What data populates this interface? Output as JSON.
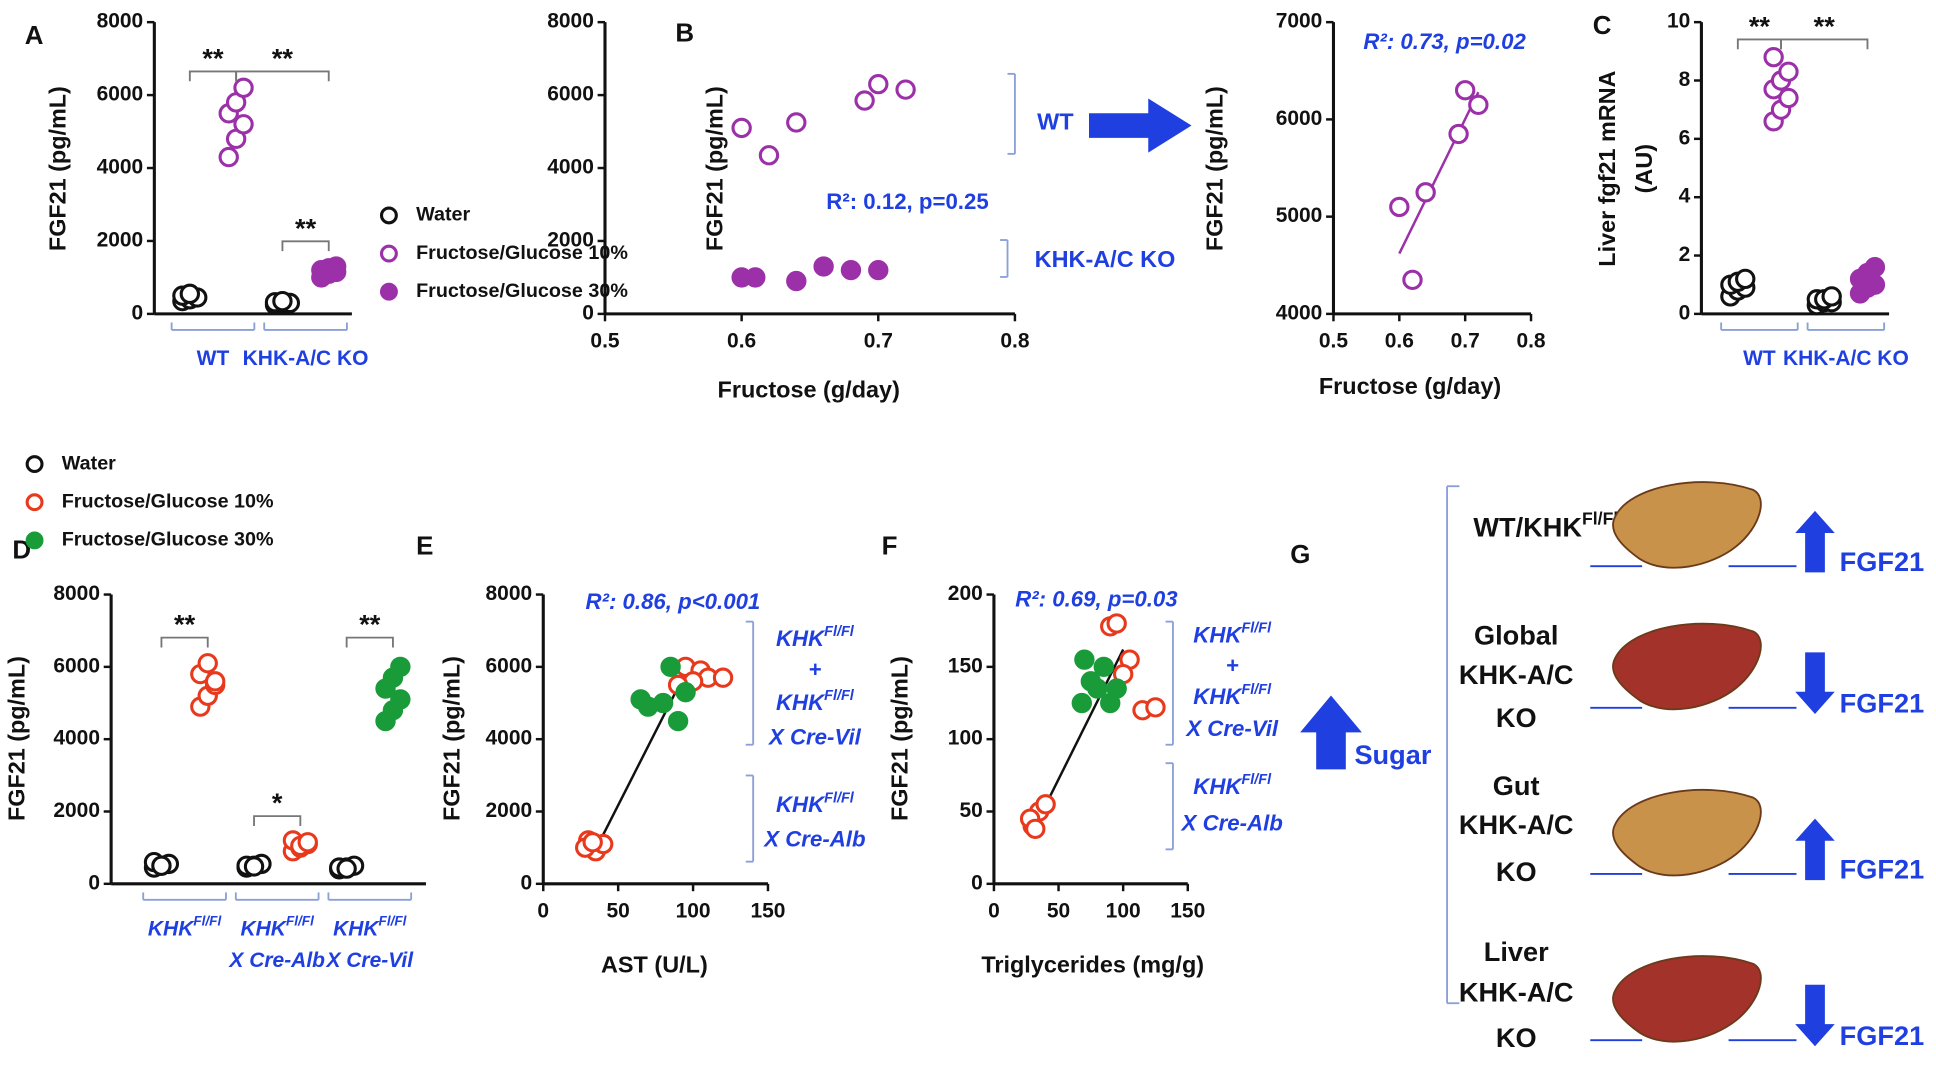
{
  "chart_data": [
    {
      "panel": "A",
      "type": "strip",
      "ylabel": "FGF21 (pg/mL)",
      "ylim": [
        0,
        8000
      ],
      "yticks": [
        0,
        2000,
        4000,
        6000,
        8000
      ],
      "categories": [
        "WT",
        "KHK-A/C KO"
      ],
      "series": [
        {
          "name": "Water",
          "color": "#111111",
          "filled": false,
          "values": [
            [
              350,
              400,
              450,
              500,
              550
            ],
            [
              250,
              280,
              300,
              320,
              350
            ]
          ]
        },
        {
          "name": "Fructose/Glucose 10%",
          "color": "#9b30a8",
          "filled": false,
          "values": [
            [
              4300,
              4800,
              5200,
              5500,
              5800,
              6200
            ],
            null
          ]
        },
        {
          "name": "Fructose/Glucose 30%",
          "color": "#9b30a8",
          "filled": true,
          "values": [
            null,
            [
              1000,
              1100,
              1150,
              1200,
              1250,
              1300
            ]
          ]
        }
      ],
      "annotations": [
        "**",
        "**",
        "**"
      ],
      "legend": "right"
    },
    {
      "panel": "B",
      "type": "scatter",
      "xlabel": "Fructose (g/day)",
      "ylabel": "FGF21 (pg/mL)",
      "xlim": [
        0.5,
        0.8
      ],
      "xticks": [
        0.5,
        0.6,
        0.7,
        0.8
      ],
      "ylim": [
        0,
        8000
      ],
      "yticks": [
        0,
        2000,
        4000,
        6000,
        8000
      ],
      "series": [
        {
          "name": "WT",
          "color": "#9b30a8",
          "filled": false,
          "x": [
            0.6,
            0.62,
            0.64,
            0.69,
            0.7,
            0.72
          ],
          "y": [
            5100,
            4350,
            5250,
            5850,
            6300,
            6150
          ]
        },
        {
          "name": "KHK-A/C KO",
          "color": "#9b30a8",
          "filled": true,
          "x": [
            0.6,
            0.61,
            0.64,
            0.66,
            0.68,
            0.7
          ],
          "y": [
            1000,
            1000,
            900,
            1300,
            1200,
            1200
          ]
        }
      ],
      "annotations": [
        "R²: 0.12, p=0.25"
      ]
    },
    {
      "type": "scatter",
      "xlabel": "Fructose (g/day)",
      "ylabel": "FGF21 (pg/mL)",
      "xlim": [
        0.5,
        0.8
      ],
      "xticks": [
        0.5,
        0.6,
        0.7,
        0.8
      ],
      "ylim": [
        4000,
        7000
      ],
      "yticks": [
        4000,
        5000,
        6000,
        7000
      ],
      "series": [
        {
          "color": "#9b30a8",
          "filled": false,
          "x": [
            0.6,
            0.62,
            0.64,
            0.69,
            0.7,
            0.72
          ],
          "y": [
            5100,
            4350,
            5250,
            5850,
            6300,
            6150
          ]
        }
      ],
      "fit": {
        "x": [
          0.6,
          0.72
        ],
        "y": [
          4620,
          6280
        ],
        "color": "#9b30a8"
      },
      "annotations": [
        "R²: 0.73, p=0.02"
      ]
    },
    {
      "panel": "C",
      "type": "strip",
      "ylabel": [
        "Liver fgf21 mRNA",
        "(AU)"
      ],
      "ylim": [
        0,
        10
      ],
      "yticks": [
        0,
        2,
        4,
        6,
        8,
        10
      ],
      "categories": [
        "WT",
        "KHK-A/C KO"
      ],
      "series": [
        {
          "color": "#111111",
          "filled": false,
          "values": [
            [
              0.6,
              0.8,
              0.9,
              1.0,
              1.1,
              1.2
            ],
            [
              0.3,
              0.4,
              0.4,
              0.5,
              0.5,
              0.6
            ]
          ]
        },
        {
          "color": "#9b30a8",
          "filled": false,
          "values": [
            [
              6.6,
              7.0,
              7.4,
              7.7,
              8.0,
              8.3,
              8.8
            ],
            null
          ]
        },
        {
          "color": "#9b30a8",
          "filled": true,
          "values": [
            null,
            [
              0.7,
              0.9,
              1.0,
              1.2,
              1.4,
              1.6
            ]
          ]
        }
      ],
      "annotations": [
        "**",
        "**"
      ]
    },
    {
      "panel": "D",
      "type": "strip",
      "ylabel": "FGF21 (pg/mL)",
      "ylim": [
        0,
        8000
      ],
      "yticks": [
        0,
        2000,
        4000,
        6000,
        8000
      ],
      "categories": [
        [
          "KHK",
          "Fl/Fl"
        ],
        [
          "KHK",
          "Fl/Fl",
          "X Cre-Alb"
        ],
        [
          "KHK",
          "Fl/Fl",
          "X Cre-Vil"
        ]
      ],
      "series": [
        {
          "name": "Water",
          "color": "#111111",
          "filled": false,
          "values": [
            [
              450,
              500,
              550,
              600,
              500
            ],
            [
              450,
              500,
              550,
              500,
              480
            ],
            [
              400,
              450,
              500,
              450,
              420
            ]
          ]
        },
        {
          "name": "Fructose/Glucose 10%",
          "color": "#e8391d",
          "filled": false,
          "values": [
            [
              4900,
              5200,
              5500,
              5800,
              6100,
              5600
            ],
            [
              900,
              1000,
              1100,
              1200,
              1050,
              1150
            ],
            null
          ]
        },
        {
          "name": "Fructose/Glucose 30%",
          "color": "#1a9b3a",
          "filled": true,
          "values": [
            null,
            null,
            [
              4500,
              4800,
              5100,
              5400,
              5700,
              6000
            ]
          ]
        }
      ],
      "annotations": [
        "**",
        "*",
        "**"
      ],
      "legend": "top-left"
    },
    {
      "panel": "E",
      "type": "scatter",
      "xlabel": "AST (U/L)",
      "ylabel": "FGF21 (pg/mL)",
      "xlim": [
        0,
        150
      ],
      "xticks": [
        0,
        50,
        100,
        150
      ],
      "ylim": [
        0,
        8000
      ],
      "yticks": [
        0,
        2000,
        4000,
        6000,
        8000
      ],
      "series": [
        {
          "color": "#e8391d",
          "filled": false,
          "x": [
            30,
            35,
            40,
            28,
            33,
            95,
            105,
            110,
            120,
            100,
            90
          ],
          "y": [
            1200,
            900,
            1100,
            1000,
            1150,
            6000,
            5900,
            5700,
            5700,
            5600,
            5500
          ]
        },
        {
          "color": "#1a9b3a",
          "filled": true,
          "x": [
            65,
            70,
            80,
            85,
            90,
            95
          ],
          "y": [
            5100,
            4900,
            5000,
            6000,
            4500,
            5300
          ]
        }
      ],
      "fit": {
        "x": [
          35,
          92
        ],
        "y": [
          950,
          5600
        ],
        "color": "#111111"
      },
      "annotations": [
        "R²: 0.86, p<0.001"
      ],
      "group_labels": [
        [
          [
            "KHK",
            "Fl/Fl"
          ],
          [
            "+"
          ],
          [
            "KHK",
            "Fl/Fl"
          ],
          [
            "X Cre-Vil"
          ]
        ],
        [
          [
            "KHK",
            "Fl/Fl"
          ],
          [
            "X Cre-Alb"
          ]
        ]
      ]
    },
    {
      "panel": "F",
      "type": "scatter",
      "xlabel": "Triglycerides (mg/g)",
      "ylabel": "FGF21 (pg/mL)",
      "xlim": [
        0,
        150
      ],
      "xticks": [
        0,
        50,
        100,
        150
      ],
      "ylim": [
        0,
        200
      ],
      "yticks": [
        0,
        50,
        100,
        150,
        200
      ],
      "series": [
        {
          "color": "#e8391d",
          "filled": false,
          "x": [
            30,
            35,
            40,
            28,
            32,
            90,
            95,
            105,
            115,
            125,
            100
          ],
          "y": [
            40,
            50,
            55,
            45,
            38,
            178,
            180,
            155,
            120,
            122,
            145
          ]
        },
        {
          "color": "#1a9b3a",
          "filled": true,
          "x": [
            70,
            75,
            80,
            85,
            90,
            68,
            95
          ],
          "y": [
            155,
            140,
            135,
            150,
            125,
            125,
            135
          ]
        }
      ],
      "fit": {
        "x": [
          32,
          100
        ],
        "y": [
          40,
          162
        ],
        "color": "#111111"
      },
      "annotations": [
        "R²: 0.69, p=0.03"
      ],
      "group_labels": [
        [
          [
            "KHK",
            "Fl/Fl"
          ],
          [
            "+"
          ],
          [
            "KHK",
            "Fl/Fl"
          ],
          [
            "X Cre-Vil"
          ]
        ],
        [
          [
            "KHK",
            "Fl/Fl"
          ],
          [
            "X Cre-Alb"
          ]
        ]
      ]
    }
  ],
  "diagram": {
    "panel": "G",
    "input": "Sugar",
    "rows": [
      {
        "label": [
          [
            "WT/KHK",
            "Fl/Fl"
          ]
        ],
        "output": "FGF21"
      },
      {
        "label": [
          [
            "Global"
          ],
          [
            "KHK-A/C"
          ],
          [
            "KO"
          ]
        ],
        "output": "FGF21"
      },
      {
        "label": [
          [
            "Gut"
          ],
          [
            "KHK-A/C"
          ],
          [
            "KO"
          ]
        ],
        "output": "FGF21"
      },
      {
        "label": [
          [
            "Liver"
          ],
          [
            "KHK-A/C"
          ],
          [
            "KO"
          ]
        ],
        "output": "FGF21"
      }
    ]
  }
}
